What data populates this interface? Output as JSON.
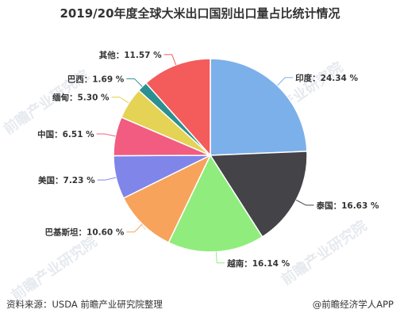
{
  "title": "2019/20年度全球大米出口国别出口量占比统计情况",
  "watermark": "前瞻产业研究院",
  "footer": {
    "source": "资料来源：USDA 前瞻产业研究院整理",
    "brand": "@前瞻经济学人APP"
  },
  "chart_data": {
    "type": "pie",
    "title": "2019/20年度全球大米出口国别出口量占比统计情况",
    "unit": "%",
    "slices": [
      {
        "label": "印度",
        "value": 24.34,
        "color": "#7cb0ea"
      },
      {
        "label": "泰国",
        "value": 16.63,
        "color": "#434348"
      },
      {
        "label": "越南",
        "value": 16.14,
        "color": "#90ed7d"
      },
      {
        "label": "巴基斯坦",
        "value": 10.6,
        "color": "#f7a35c"
      },
      {
        "label": "美国",
        "value": 7.23,
        "color": "#8085e9"
      },
      {
        "label": "中国",
        "value": 6.51,
        "color": "#f15c80"
      },
      {
        "label": "缅甸",
        "value": 5.3,
        "color": "#e4d354"
      },
      {
        "label": "巴西",
        "value": 1.69,
        "color": "#2b908f"
      },
      {
        "label": "其他",
        "value": 11.57,
        "color": "#f45b5b"
      }
    ]
  }
}
